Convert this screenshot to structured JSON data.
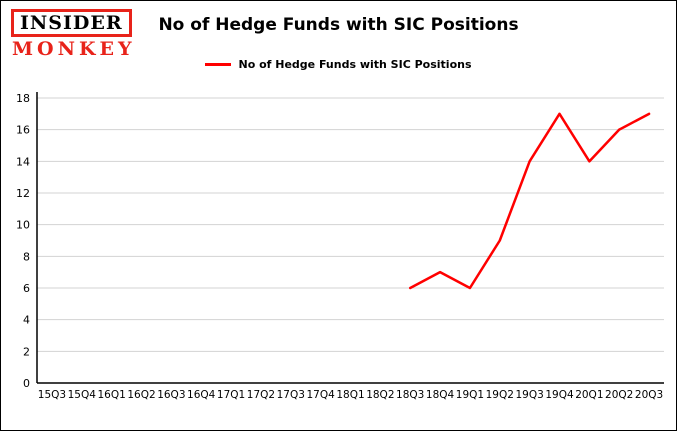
{
  "logo": {
    "line1": "INSIDER",
    "line2": "MONKEY",
    "red": "#e8231a"
  },
  "header": {
    "title": "No of Hedge Funds with SIC Positions"
  },
  "legend": {
    "label": "No of Hedge Funds with SIC Positions",
    "swatch_color": "#ff0000"
  },
  "colors": {
    "line": "#ff0000",
    "grid": "#d3d3d3",
    "axis": "#000000",
    "text": "#000000",
    "background": "#ffffff"
  },
  "chart_data": {
    "type": "line",
    "title": "No of Hedge Funds with SIC Positions",
    "xlabel": "",
    "ylabel": "",
    "categories": [
      "15Q3",
      "15Q4",
      "16Q1",
      "16Q2",
      "16Q3",
      "16Q4",
      "17Q1",
      "17Q2",
      "17Q3",
      "17Q4",
      "18Q1",
      "18Q2",
      "18Q3",
      "18Q4",
      "19Q1",
      "19Q2",
      "19Q3",
      "19Q4",
      "20Q1",
      "20Q2",
      "20Q3"
    ],
    "series": [
      {
        "name": "No of Hedge Funds with SIC Positions",
        "color": "#ff0000",
        "values": [
          null,
          null,
          null,
          null,
          null,
          null,
          null,
          null,
          null,
          null,
          null,
          null,
          6,
          7,
          6,
          9,
          14,
          17,
          14,
          16,
          17
        ]
      }
    ],
    "ylim": [
      0,
      18
    ],
    "ytick_step": 2,
    "yticks": [
      0,
      2,
      4,
      6,
      8,
      10,
      12,
      14,
      16,
      18
    ],
    "grid": "horizontal",
    "legend_position": "top-center"
  }
}
